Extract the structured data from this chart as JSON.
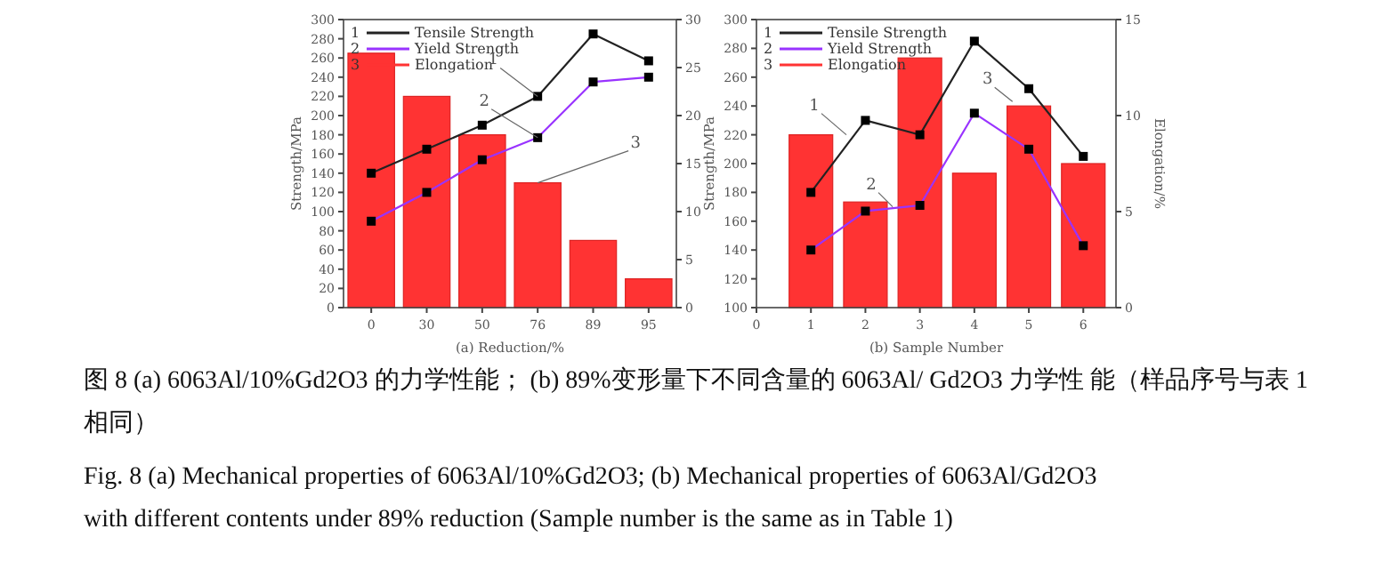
{
  "chart_data": [
    {
      "type": "bar",
      "categories": [
        "0",
        "30",
        "50",
        "76",
        "89",
        "95"
      ],
      "xlabel": "(a) Reduction/%",
      "ylabel": "Strength/MPa",
      "ylim": [
        0,
        300
      ],
      "yticks": [
        0,
        20,
        40,
        60,
        80,
        100,
        120,
        140,
        160,
        180,
        200,
        220,
        240,
        260,
        280,
        300
      ],
      "y2lim": [
        0,
        30
      ],
      "y2ticks": [
        0,
        5,
        10,
        15,
        20,
        25,
        30
      ],
      "legend": "top left",
      "grid": false,
      "marker": "square",
      "series": [
        {
          "name": "Tensile Strength",
          "type": "line",
          "color": "#222222",
          "values": [
            140,
            165,
            190,
            220,
            285,
            257
          ]
        },
        {
          "name": "Yield Strength",
          "type": "line",
          "color": "#9933ff",
          "values": [
            90,
            120,
            154,
            177,
            235,
            240
          ]
        },
        {
          "name": "Elongation",
          "axis": "y2",
          "color": "#ff3333",
          "values": [
            26.5,
            22,
            18,
            13,
            7,
            3
          ]
        }
      ],
      "annotations": [
        {
          "text": "1",
          "x": "76",
          "y": 220
        },
        {
          "text": "2",
          "x": "76",
          "y": 177
        },
        {
          "text": "3",
          "x": "76",
          "y": 130
        }
      ]
    },
    {
      "type": "bar",
      "x": [
        1,
        2,
        3,
        4,
        5,
        6
      ],
      "xlim": [
        0,
        6.6
      ],
      "xticks": [
        0,
        1,
        2,
        3,
        4,
        5,
        6
      ],
      "xlabel": "(b) Sample Number",
      "ylabel": "Strength/MPa",
      "y2label": "Elongation/%",
      "ylim": [
        100,
        300
      ],
      "yticks": [
        100,
        120,
        140,
        160,
        180,
        200,
        220,
        240,
        260,
        280,
        300
      ],
      "y2lim": [
        0,
        15
      ],
      "y2ticks": [
        0,
        5,
        10,
        15
      ],
      "legend": "top left",
      "grid": false,
      "marker": "square",
      "series": [
        {
          "name": "Tensile Strength",
          "type": "line",
          "color": "#222222",
          "values": [
            180,
            230,
            220,
            285,
            252,
            205
          ]
        },
        {
          "name": "Yield Strength",
          "type": "line",
          "color": "#9933ff",
          "values": [
            140,
            167,
            171,
            235,
            210,
            143
          ]
        },
        {
          "name": "Elongation",
          "axis": "y2",
          "color": "#ff3333",
          "values": [
            9,
            5.5,
            13,
            7,
            10.5,
            7.5
          ]
        }
      ],
      "annotations": [
        {
          "text": "1",
          "x": 1.65,
          "y": 220
        },
        {
          "text": "2",
          "x": 2.5,
          "y": 170
        },
        {
          "text": "3",
          "x": 4.7,
          "y": 243
        },
        "图 8 (a) 6063Al/10%Gd2O3 的力学性能； (b) 89%变形量下不同含量的 6063Al/ Gd2O3 力学性 能（样品序号与表 1 相同）",
        "Fig. 8 (a) Mechanical properties of 6063Al/10%Gd2O3; (b) Mechanical properties of 6063Al/Gd2O3 with different contents under 89% reduction (Sample number is the same as in Table 1)"
      ]
    }
  ]
}
